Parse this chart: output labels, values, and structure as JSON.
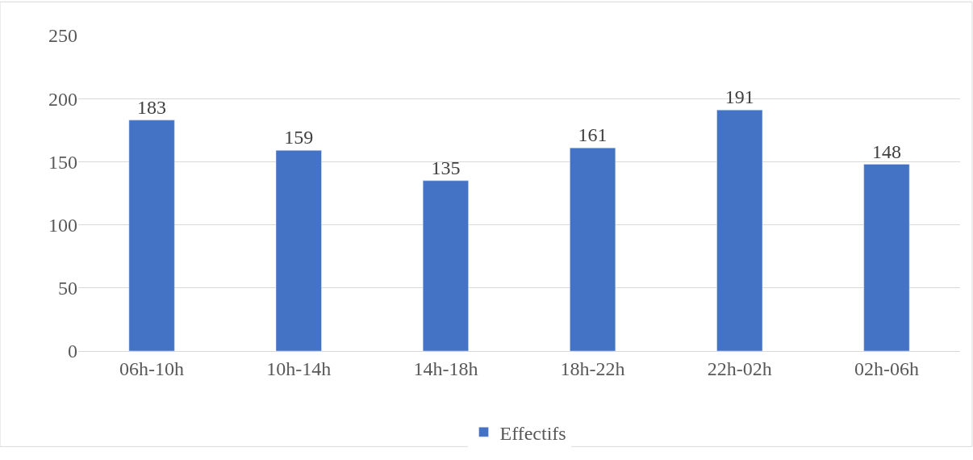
{
  "chart_data": {
    "type": "bar",
    "categories": [
      "06h-10h",
      "10h-14h",
      "14h-18h",
      "18h-22h",
      "22h-02h",
      "02h-06h"
    ],
    "series": [
      {
        "name": "Effectifs",
        "color": "#4472c4",
        "values": [
          183,
          159,
          135,
          161,
          191,
          148
        ]
      }
    ],
    "ylim": [
      0,
      250
    ],
    "yticks": [
      0,
      50,
      100,
      150,
      200,
      250
    ],
    "grid": "y",
    "legend": "bottom",
    "data_labels": true
  }
}
